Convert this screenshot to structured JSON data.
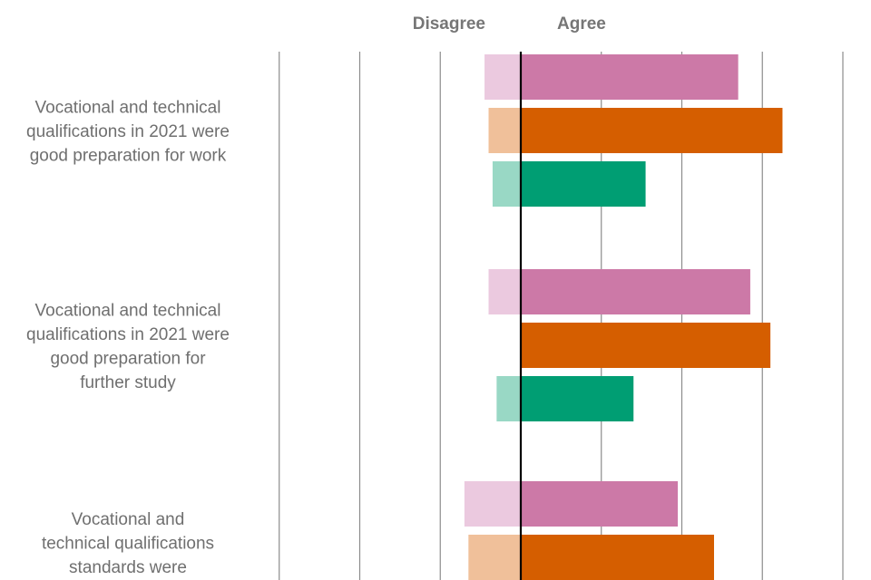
{
  "chart_data": {
    "type": "bar",
    "orientation": "horizontal-diverging",
    "header_disagree": "Disagree",
    "header_agree": "Agree",
    "xlim": [
      -30,
      40
    ],
    "grid_step": 10,
    "categories": [
      {
        "label_lines": [
          "Vocational and technical",
          "qualifications in 2021 were",
          "good preparation for work"
        ],
        "bars": [
          {
            "disagree": 4.5,
            "agree": 27.0
          },
          {
            "disagree": 4.0,
            "agree": 32.5
          },
          {
            "disagree": 3.5,
            "agree": 15.5
          }
        ]
      },
      {
        "label_lines": [
          "Vocational and technical",
          "qualifications in 2021 were",
          "good preparation for",
          "further study"
        ],
        "bars": [
          {
            "disagree": 4.0,
            "agree": 28.5
          },
          {
            "disagree": 0,
            "agree": 31.0
          },
          {
            "disagree": 3.0,
            "agree": 14.0
          }
        ]
      },
      {
        "label_lines": [
          "Vocational and",
          "technical qualifications",
          "standards were"
        ],
        "bars": [
          {
            "disagree": 7.0,
            "agree": 19.5
          },
          {
            "disagree": 6.5,
            "agree": 24.0
          }
        ]
      }
    ],
    "colors": {
      "agree": [
        "#cc79a7",
        "#d55e00",
        "#009e73"
      ],
      "disagree": [
        "#ebc9df",
        "#f0c09a",
        "#99d8c5"
      ]
    }
  }
}
